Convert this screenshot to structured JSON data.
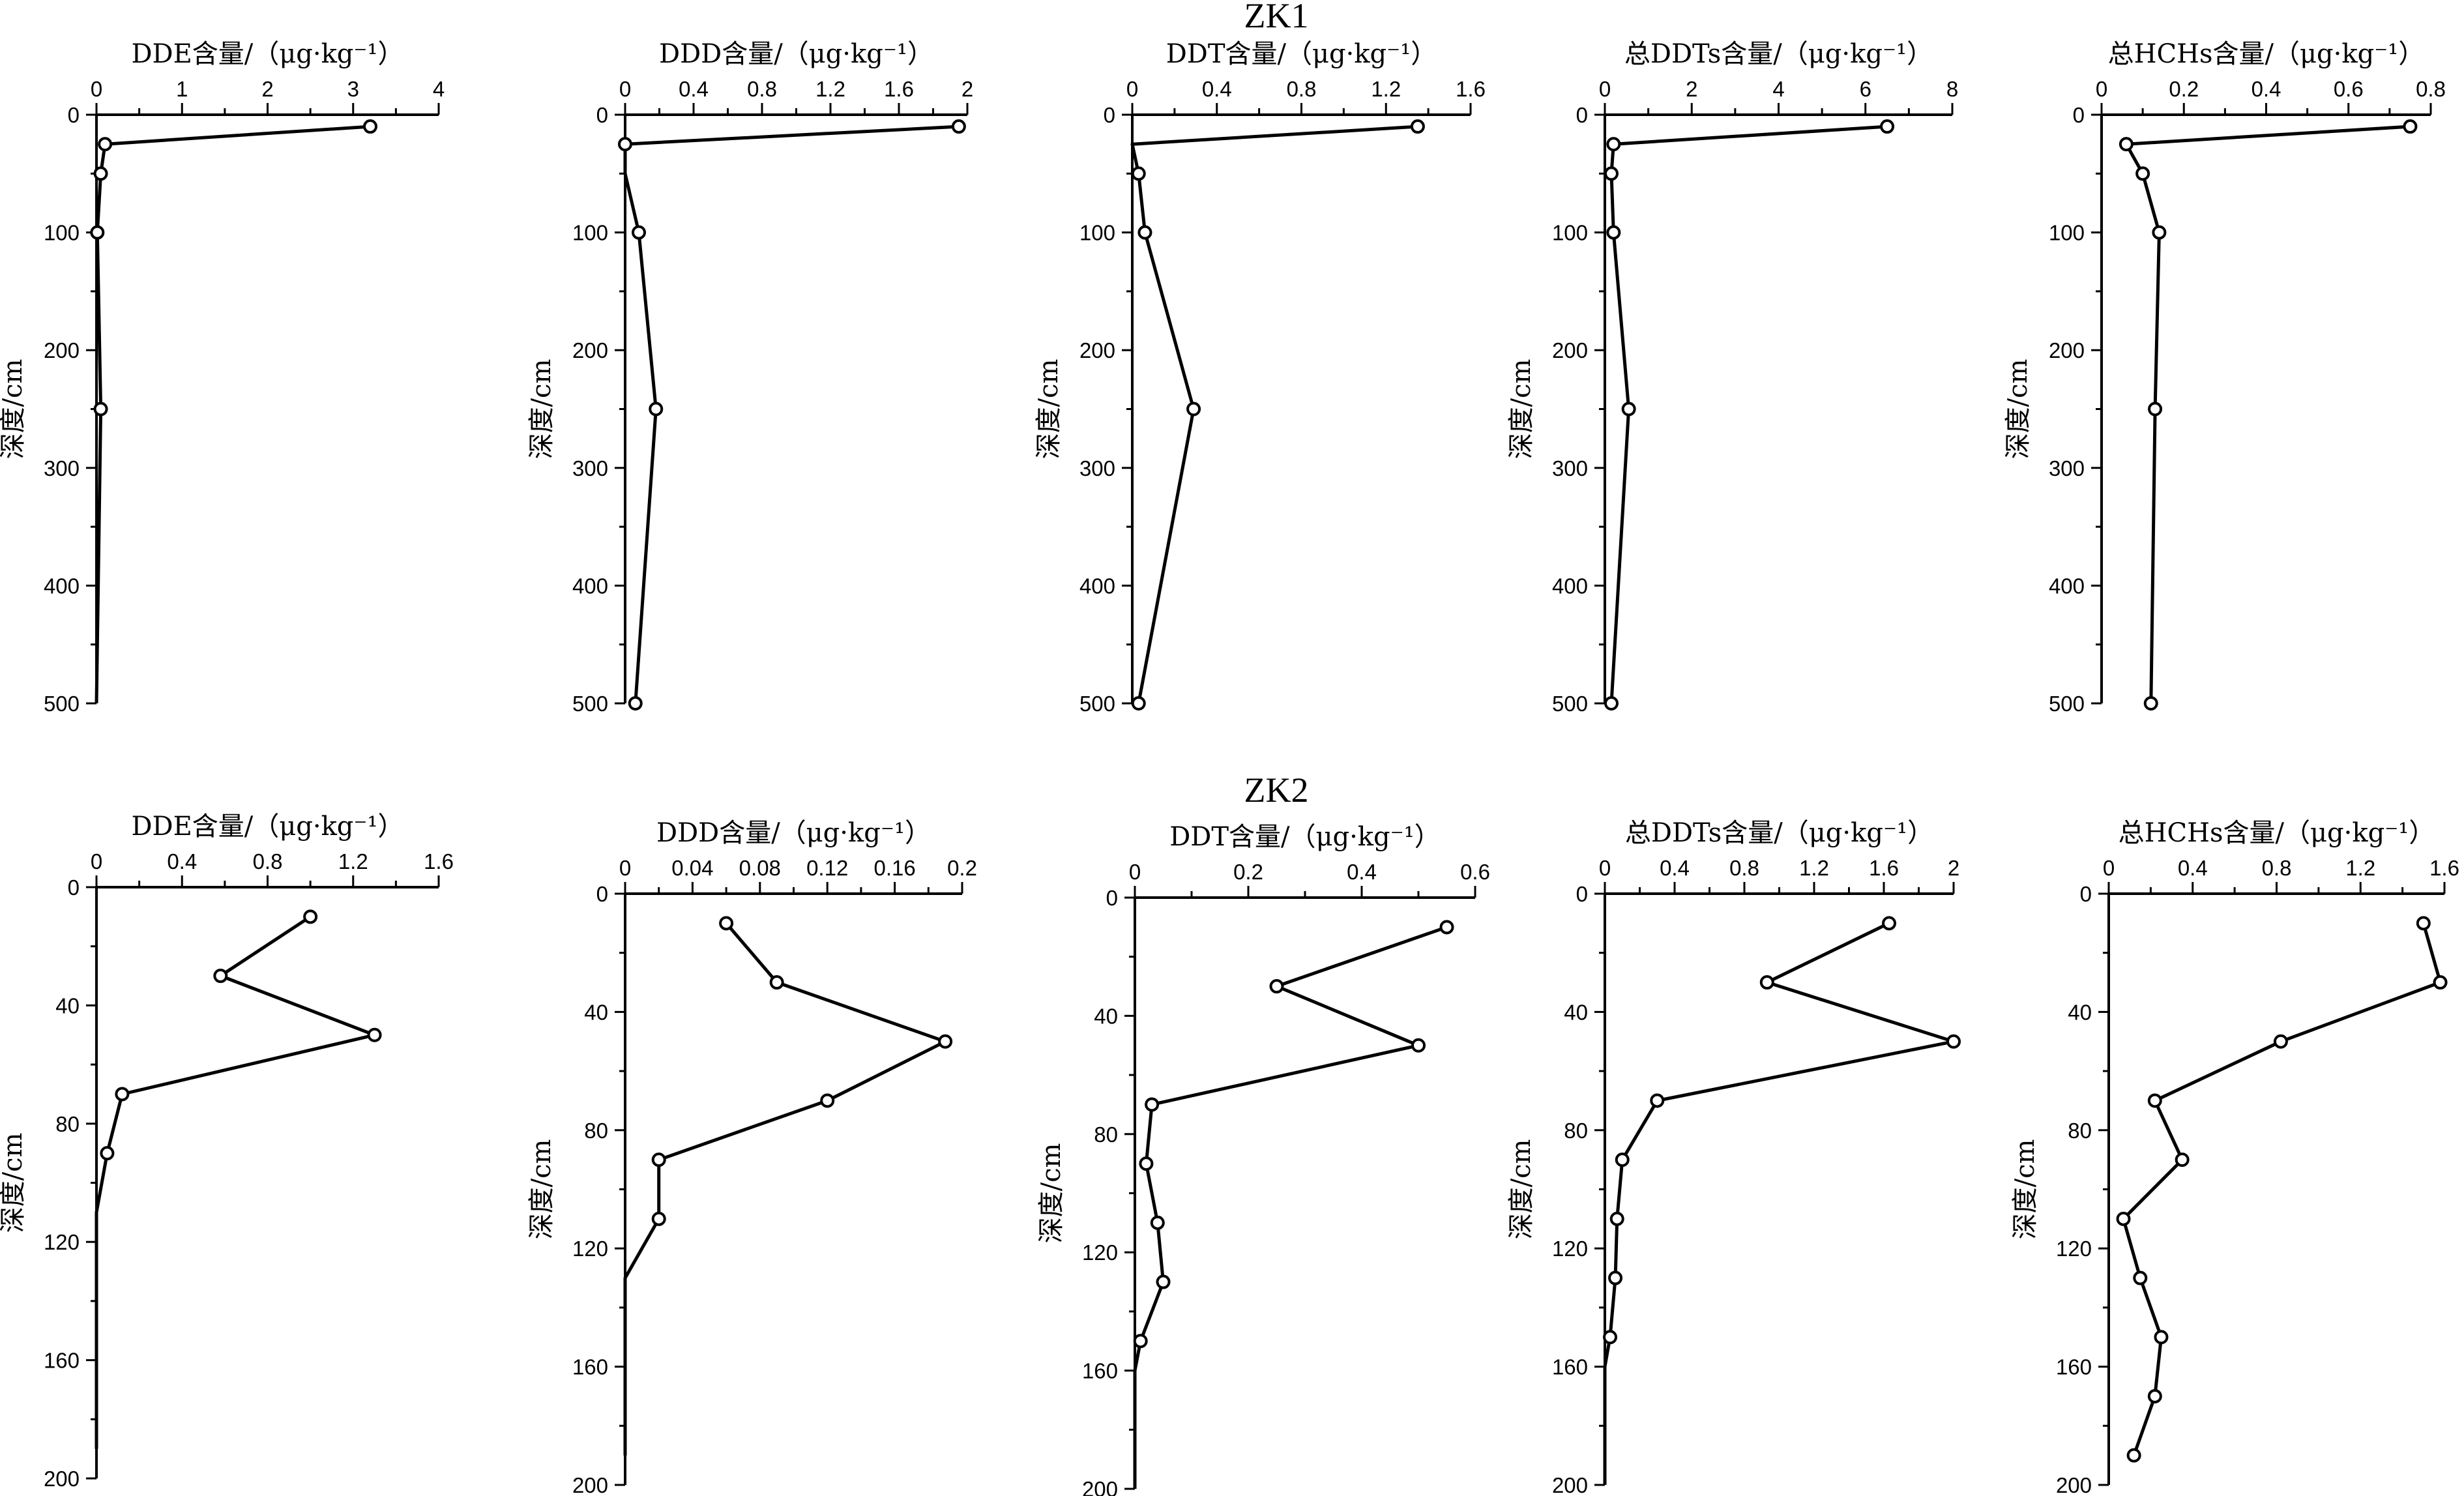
{
  "groups": [
    {
      "label": "ZK1"
    },
    {
      "label": "ZK2"
    }
  ],
  "chart_data": [
    {
      "type": "line",
      "group": "ZK1",
      "xlabel": "DDE含量/（μg·kg⁻¹）",
      "ylabel": "深度/cm",
      "xlim": [
        0,
        4
      ],
      "xticks": [
        0,
        1,
        2,
        3,
        4
      ],
      "xtick_labels": [
        "0",
        "1",
        "2",
        "3",
        "4"
      ],
      "xminor": 0.5,
      "ylim": [
        0,
        500
      ],
      "yticks": [
        0,
        100,
        200,
        300,
        400,
        500
      ],
      "ytick_labels": [
        "0",
        "100",
        "200",
        "300",
        "400",
        "500"
      ],
      "yminor": 50,
      "series": [
        {
          "x": [
            3.2,
            0.1,
            0.05,
            0.01,
            0.05,
            0.0
          ],
          "y": [
            10,
            25,
            50,
            100,
            250,
            500
          ],
          "markers": [
            true,
            true,
            true,
            true,
            true,
            false
          ]
        }
      ]
    },
    {
      "type": "line",
      "group": "ZK1",
      "xlabel": "DDD含量/（μg·kg⁻¹）",
      "ylabel": "深度/cm",
      "xlim": [
        0,
        2
      ],
      "xticks": [
        0,
        0.4,
        0.8,
        1.2,
        1.6,
        2
      ],
      "xtick_labels": [
        "0",
        "0.4",
        "0.8",
        "1.2",
        "1.6",
        "2"
      ],
      "xminor": 0.2,
      "ylim": [
        0,
        500
      ],
      "yticks": [
        0,
        100,
        200,
        300,
        400,
        500
      ],
      "ytick_labels": [
        "0",
        "100",
        "200",
        "300",
        "400",
        "500"
      ],
      "yminor": 50,
      "series": [
        {
          "x": [
            1.95,
            0.0,
            0.0,
            0.08,
            0.18,
            0.06
          ],
          "y": [
            10,
            25,
            50,
            100,
            250,
            500
          ],
          "markers": [
            true,
            true,
            false,
            true,
            true,
            true
          ]
        }
      ]
    },
    {
      "type": "line",
      "group": "ZK1",
      "xlabel": "DDT含量/（μg·kg⁻¹）",
      "ylabel": "深度/cm",
      "xlim": [
        0,
        1.6
      ],
      "xticks": [
        0,
        0.4,
        0.8,
        1.2,
        1.6
      ],
      "xtick_labels": [
        "0",
        "0.4",
        "0.8",
        "1.2",
        "1.6"
      ],
      "xminor": 0.2,
      "ylim": [
        0,
        500
      ],
      "yticks": [
        0,
        100,
        200,
        300,
        400,
        500
      ],
      "ytick_labels": [
        "0",
        "100",
        "200",
        "300",
        "400",
        "500"
      ],
      "yminor": 50,
      "series": [
        {
          "x": [
            1.35,
            0.0,
            0.03,
            0.06,
            0.29,
            0.03
          ],
          "y": [
            10,
            25,
            50,
            100,
            250,
            500
          ],
          "markers": [
            true,
            false,
            true,
            true,
            true,
            true
          ]
        }
      ]
    },
    {
      "type": "line",
      "group": "ZK1",
      "xlabel": "总DDTs含量/（μg·kg⁻¹）",
      "ylabel": "深度/cm",
      "xlim": [
        0,
        8
      ],
      "xticks": [
        0,
        2,
        4,
        6,
        8
      ],
      "xtick_labels": [
        "0",
        "2",
        "4",
        "6",
        "8"
      ],
      "xminor": 1,
      "ylim": [
        0,
        500
      ],
      "yticks": [
        0,
        100,
        200,
        300,
        400,
        500
      ],
      "ytick_labels": [
        "0",
        "100",
        "200",
        "300",
        "400",
        "500"
      ],
      "yminor": 50,
      "series": [
        {
          "x": [
            6.5,
            0.2,
            0.15,
            0.2,
            0.55,
            0.15
          ],
          "y": [
            10,
            25,
            50,
            100,
            250,
            500
          ],
          "markers": [
            true,
            true,
            true,
            true,
            true,
            true
          ]
        }
      ]
    },
    {
      "type": "line",
      "group": "ZK1",
      "xlabel": "总HCHs含量/（μg·kg⁻¹）",
      "ylabel": "深度/cm",
      "xlim": [
        0,
        0.8
      ],
      "xticks": [
        0,
        0.2,
        0.4,
        0.6,
        0.8
      ],
      "xtick_labels": [
        "0",
        "0.2",
        "0.4",
        "0.6",
        "0.8"
      ],
      "xminor": 0.1,
      "ylim": [
        0,
        500
      ],
      "yticks": [
        0,
        100,
        200,
        300,
        400,
        500
      ],
      "ytick_labels": [
        "0",
        "100",
        "200",
        "300",
        "400",
        "500"
      ],
      "yminor": 50,
      "series": [
        {
          "x": [
            0.75,
            0.06,
            0.1,
            0.14,
            0.13,
            0.12
          ],
          "y": [
            10,
            25,
            50,
            100,
            250,
            500
          ],
          "markers": [
            true,
            true,
            true,
            true,
            true,
            true
          ]
        }
      ]
    },
    {
      "type": "line",
      "group": "ZK2",
      "xlabel": "DDE含量/（μg·kg⁻¹）",
      "ylabel": "深度/cm",
      "xlim": [
        0,
        1.6
      ],
      "xticks": [
        0,
        0.4,
        0.8,
        1.2,
        1.6
      ],
      "xtick_labels": [
        "0",
        "0.4",
        "0.8",
        "1.2",
        "1.6"
      ],
      "xminor": 0.2,
      "ylim": [
        0,
        200
      ],
      "yticks": [
        0,
        40,
        80,
        120,
        160,
        200
      ],
      "ytick_labels": [
        "0",
        "40",
        "80",
        "120",
        "160",
        "200"
      ],
      "yminor": 20,
      "series": [
        {
          "x": [
            1.0,
            0.58,
            1.3,
            0.12,
            0.05,
            0.0,
            0.0
          ],
          "y": [
            10,
            30,
            50,
            70,
            90,
            110,
            190
          ],
          "markers": [
            true,
            true,
            true,
            true,
            true,
            false,
            false
          ]
        }
      ]
    },
    {
      "type": "line",
      "group": "ZK2",
      "xlabel": "DDD含量/（μg·kg⁻¹）",
      "ylabel": "深度/cm",
      "xlim": [
        0,
        0.2
      ],
      "xticks": [
        0,
        0.04,
        0.08,
        0.12,
        0.16,
        0.2
      ],
      "xtick_labels": [
        "0",
        "0.04",
        "0.08",
        "0.12",
        "0.16",
        "0.2"
      ],
      "xminor": 0.02,
      "ylim": [
        0,
        200
      ],
      "yticks": [
        0,
        40,
        80,
        120,
        160,
        200
      ],
      "ytick_labels": [
        "0",
        "40",
        "80",
        "120",
        "160",
        "200"
      ],
      "yminor": 20,
      "series": [
        {
          "x": [
            0.06,
            0.09,
            0.19,
            0.12,
            0.02,
            0.02,
            0.0,
            0.0
          ],
          "y": [
            10,
            30,
            50,
            70,
            90,
            110,
            130,
            190
          ],
          "markers": [
            true,
            true,
            true,
            true,
            true,
            true,
            false,
            false
          ]
        }
      ]
    },
    {
      "type": "line",
      "group": "ZK2",
      "xlabel": "DDT含量/（μg·kg⁻¹）",
      "ylabel": "深度/cm",
      "xlim": [
        0,
        0.6
      ],
      "xticks": [
        0,
        0.2,
        0.4,
        0.6
      ],
      "xtick_labels": [
        "0",
        "0.2",
        "0.4",
        "0.6"
      ],
      "xminor": 0.1,
      "ylim": [
        0,
        200
      ],
      "yticks": [
        0,
        40,
        80,
        120,
        160,
        200
      ],
      "ytick_labels": [
        "0",
        "40",
        "80",
        "120",
        "160",
        "200"
      ],
      "yminor": 20,
      "series": [
        {
          "x": [
            0.55,
            0.25,
            0.5,
            0.03,
            0.02,
            0.04,
            0.05,
            0.01,
            0.0,
            0.0
          ],
          "y": [
            10,
            30,
            50,
            70,
            90,
            110,
            130,
            150,
            160,
            200
          ],
          "markers": [
            true,
            true,
            true,
            true,
            true,
            true,
            true,
            true,
            false,
            false
          ]
        }
      ]
    },
    {
      "type": "line",
      "group": "ZK2",
      "xlabel": "总DDTs含量/（μg·kg⁻¹）",
      "ylabel": "深度/cm",
      "xlim": [
        0,
        2
      ],
      "xticks": [
        0,
        0.4,
        0.8,
        1.2,
        1.6,
        2
      ],
      "xtick_labels": [
        "0",
        "0.4",
        "0.8",
        "1.2",
        "1.6",
        "2"
      ],
      "xminor": 0.2,
      "ylim": [
        0,
        200
      ],
      "yticks": [
        0,
        40,
        80,
        120,
        160,
        200
      ],
      "ytick_labels": [
        "0",
        "40",
        "80",
        "120",
        "160",
        "200"
      ],
      "yminor": 20,
      "series": [
        {
          "x": [
            1.63,
            0.93,
            2.0,
            0.3,
            0.1,
            0.07,
            0.06,
            0.03,
            0.0,
            0.0
          ],
          "y": [
            10,
            30,
            50,
            70,
            90,
            110,
            130,
            150,
            160,
            200
          ],
          "markers": [
            true,
            true,
            true,
            true,
            true,
            true,
            true,
            true,
            false,
            false
          ]
        }
      ]
    },
    {
      "type": "line",
      "group": "ZK2",
      "xlabel": "总HCHs含量/（μg·kg⁻¹）",
      "ylabel": "深度/cm",
      "xlim": [
        0,
        1.6
      ],
      "xticks": [
        0,
        0.4,
        0.8,
        1.2,
        1.6
      ],
      "xtick_labels": [
        "0",
        "0.4",
        "0.8",
        "1.2",
        "1.6"
      ],
      "xminor": 0.2,
      "ylim": [
        0,
        200
      ],
      "yticks": [
        0,
        40,
        80,
        120,
        160,
        200
      ],
      "ytick_labels": [
        "0",
        "40",
        "80",
        "120",
        "160",
        "200"
      ],
      "yminor": 20,
      "series": [
        {
          "x": [
            1.5,
            1.58,
            0.82,
            0.22,
            0.35,
            0.07,
            0.15,
            0.25,
            0.22,
            0.12
          ],
          "y": [
            10,
            30,
            50,
            70,
            90,
            110,
            130,
            150,
            170,
            190
          ],
          "markers": [
            true,
            true,
            true,
            true,
            true,
            true,
            true,
            true,
            true,
            true
          ]
        }
      ]
    }
  ]
}
